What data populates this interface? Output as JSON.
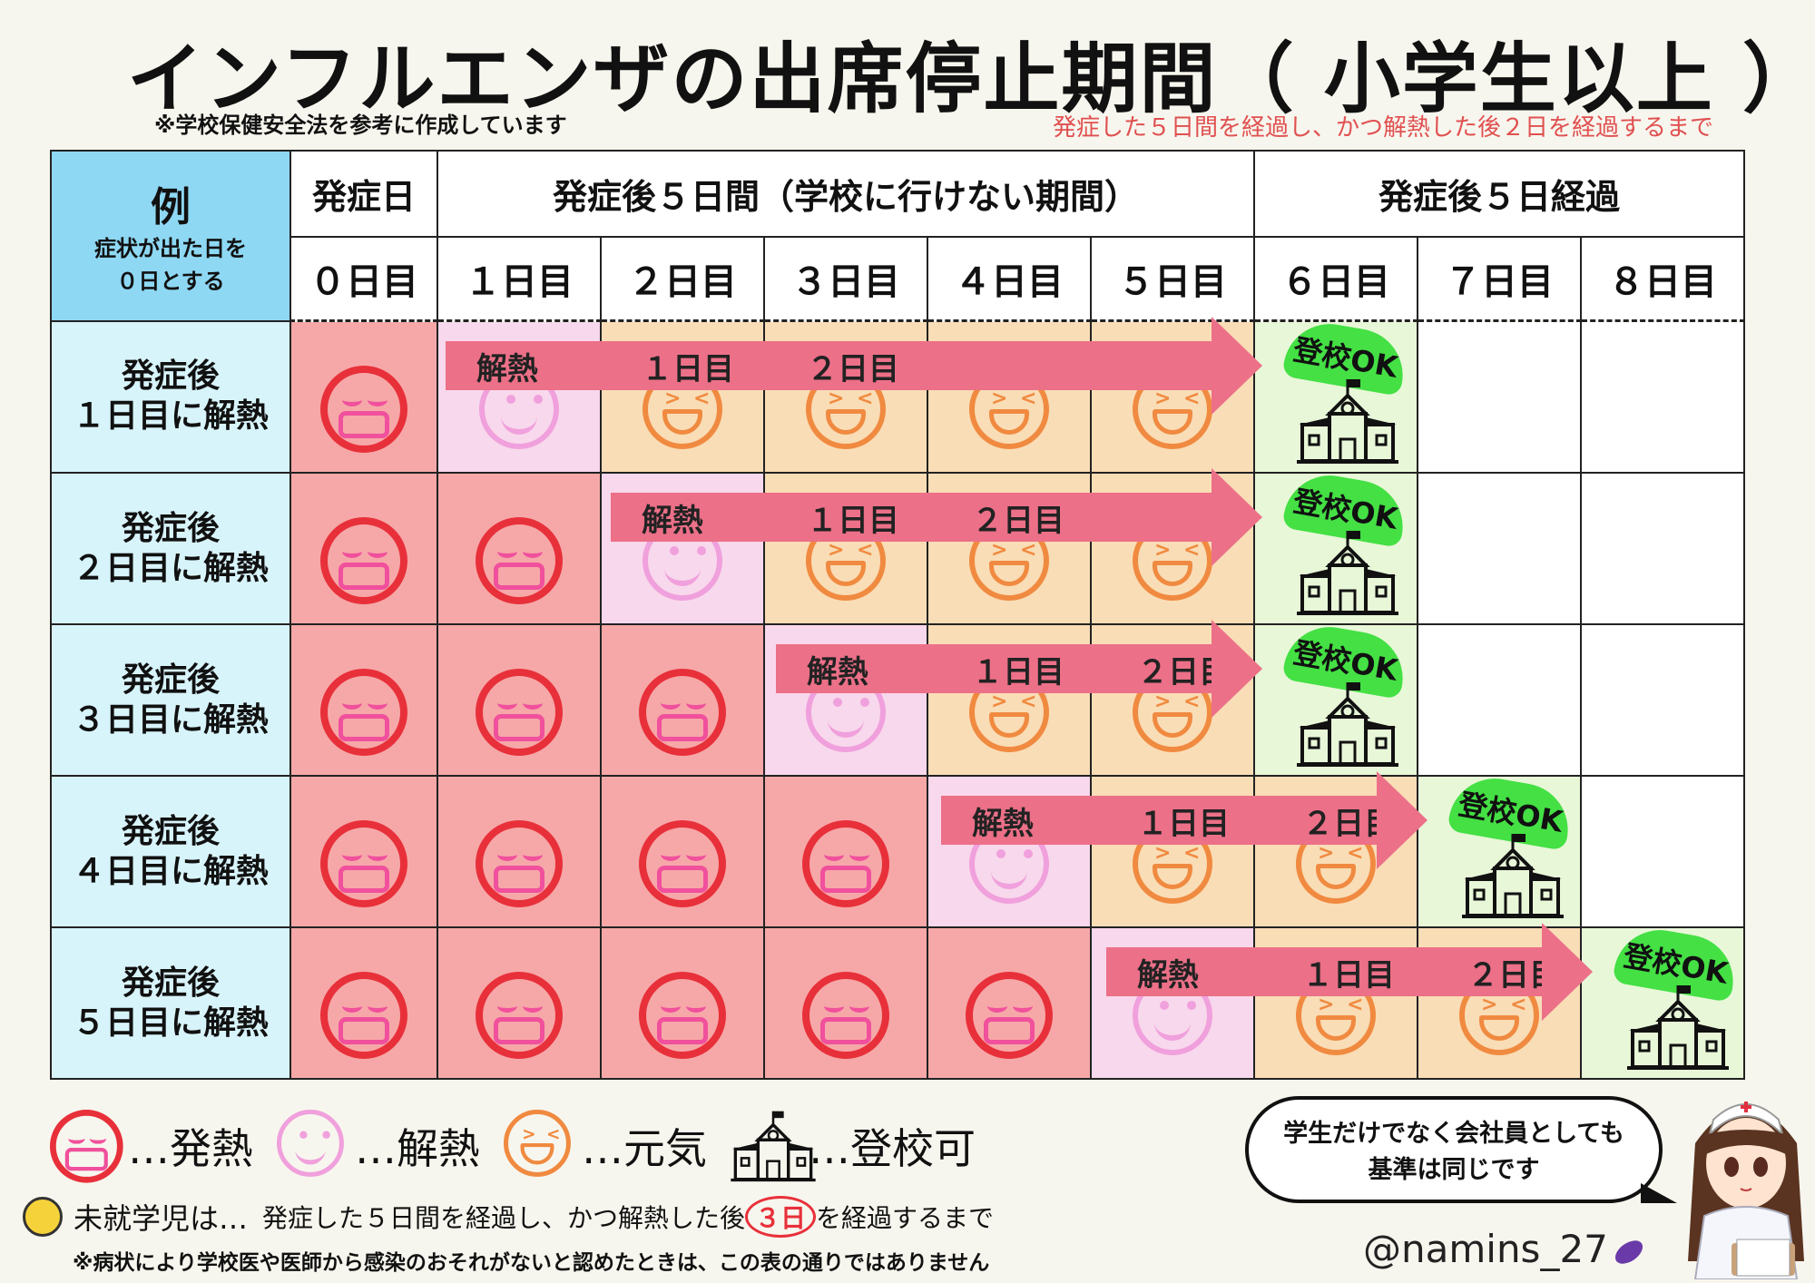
{
  "title": "インフルエンザの出席停止期間（ 小学生以上 ）",
  "note_top": "※学校保健安全法を参考に作成しています",
  "rule_top": "発症した５日間を経過し、かつ解熱した後２日を経過するまで",
  "table": {
    "example_label": "例",
    "example_sub1": "症状が出た日を",
    "example_sub2": "０日とする",
    "header_onset": "発症日",
    "header_period": "発症後５日間（学校に行けない期間）",
    "header_after": "発症後５日経過",
    "days": [
      "０日目",
      "１日目",
      "２日目",
      "３日目",
      "４日目",
      "５日目",
      "６日目",
      "７日目",
      "８日目"
    ],
    "rows": [
      {
        "label1": "発症後",
        "label2": "１日目に解熱",
        "cells": [
          "fever",
          "clear",
          "genki",
          "genki",
          "genki",
          "genki",
          "ok",
          "empty",
          "empty"
        ]
      },
      {
        "label1": "発症後",
        "label2": "２日目に解熱",
        "cells": [
          "fever",
          "fever",
          "clear",
          "genki",
          "genki",
          "genki",
          "ok",
          "empty",
          "empty"
        ]
      },
      {
        "label1": "発症後",
        "label2": "３日目に解熱",
        "cells": [
          "fever",
          "fever",
          "fever",
          "clear",
          "genki",
          "genki",
          "ok",
          "empty",
          "empty"
        ]
      },
      {
        "label1": "発症後",
        "label2": "４日目に解熱",
        "cells": [
          "fever",
          "fever",
          "fever",
          "fever",
          "clear",
          "genki",
          "genki",
          "ok",
          "empty"
        ]
      },
      {
        "label1": "発症後",
        "label2": "５日目に解熱",
        "cells": [
          "fever",
          "fever",
          "fever",
          "fever",
          "fever",
          "clear",
          "genki",
          "genki",
          "ok"
        ]
      }
    ],
    "arrow_labels": [
      "解熱",
      "１日目",
      "２日目"
    ],
    "ok_label": "登校OK"
  },
  "legend": {
    "fever": "…発熱",
    "clear": "…解熱",
    "genki": "…元気",
    "school": "…登校可"
  },
  "bubble_line1": "学生だけでなく会社員としても",
  "bubble_line2": "基準は同じです",
  "preschool_label": "未就学児は…",
  "preschool_rule_a": "発症した５日間を経過し、かつ解熱した後",
  "preschool_rule_b": "３日",
  "preschool_rule_c": "を経過するまで",
  "disclaimer": "※病状により学校医や医師から感染のおそれがないと認めたときは、この表の通りではありません",
  "handle": "@namins_27",
  "colors": {
    "fever_bg": "#f6a8a8",
    "clear_bg": "#f8d8ec",
    "genki_bg": "#f9ddb6",
    "ok_bg": "#e8f7d8",
    "arrow": "#ec7088",
    "badge": "#44e044",
    "example_bg": "#8ed8f4",
    "rowhead_bg": "#d8f4fb"
  }
}
